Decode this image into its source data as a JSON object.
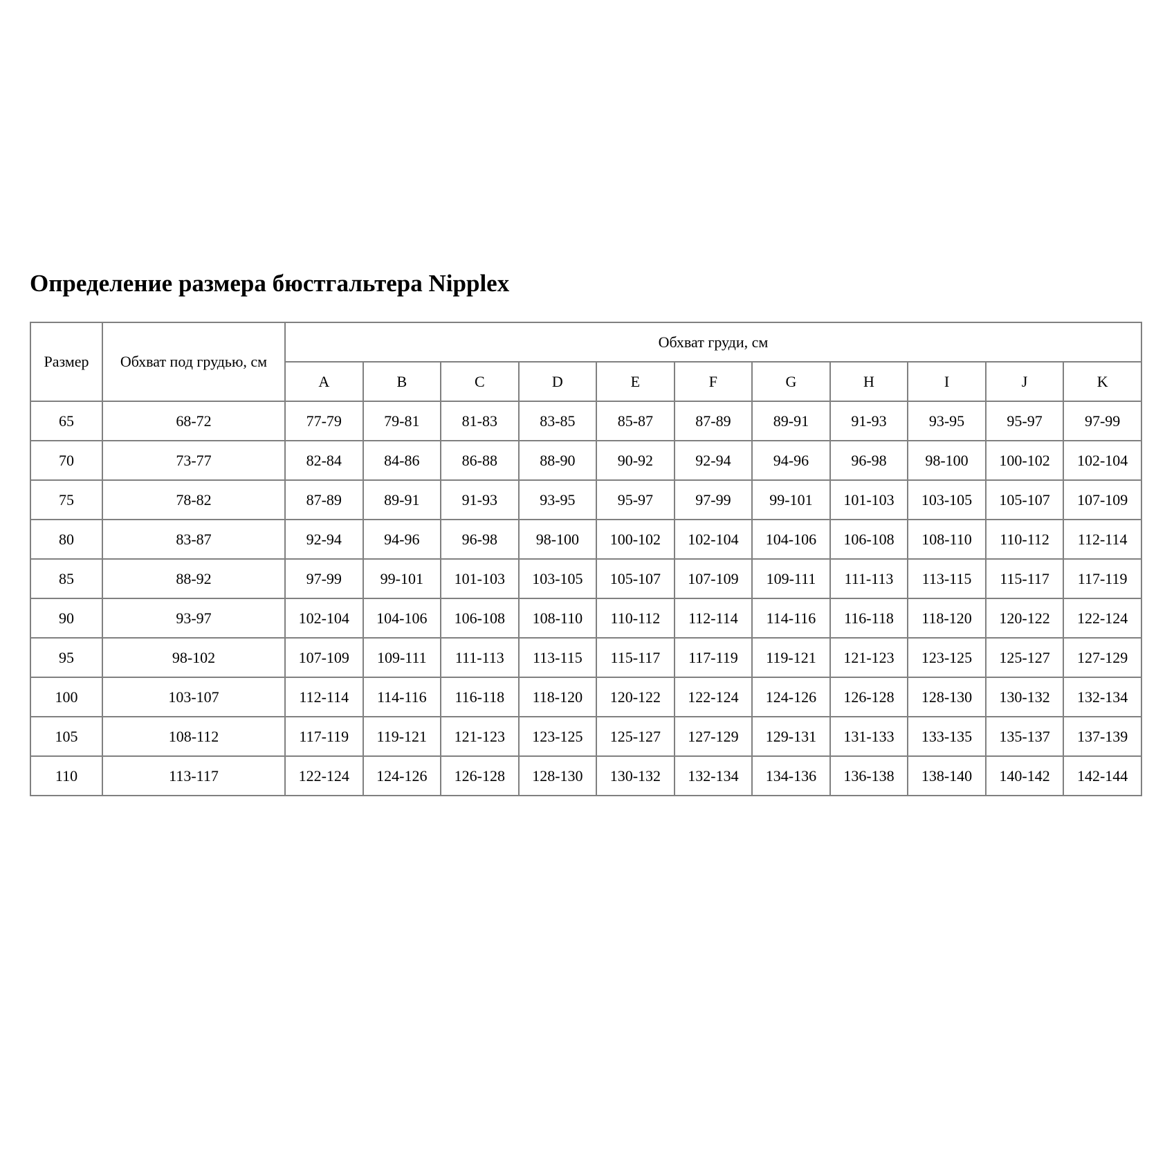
{
  "title": "Определение размера бюстгальтера Nipplex",
  "headers": {
    "size": "Размер",
    "underbust": "Обхват под грудью, см",
    "bust": "Обхват груди, см",
    "cups": [
      "A",
      "B",
      "C",
      "D",
      "E",
      "F",
      "G",
      "H",
      "I",
      "J",
      "K"
    ]
  },
  "rows": [
    {
      "size": "65",
      "underbust": "68-72",
      "cups": [
        "77-79",
        "79-81",
        "81-83",
        "83-85",
        "85-87",
        "87-89",
        "89-91",
        "91-93",
        "93-95",
        "95-97",
        "97-99"
      ]
    },
    {
      "size": "70",
      "underbust": "73-77",
      "cups": [
        "82-84",
        "84-86",
        "86-88",
        "88-90",
        "90-92",
        "92-94",
        "94-96",
        "96-98",
        "98-100",
        "100-102",
        "102-104"
      ]
    },
    {
      "size": "75",
      "underbust": "78-82",
      "cups": [
        "87-89",
        "89-91",
        "91-93",
        "93-95",
        "95-97",
        "97-99",
        "99-101",
        "101-103",
        "103-105",
        "105-107",
        "107-109"
      ]
    },
    {
      "size": "80",
      "underbust": "83-87",
      "cups": [
        "92-94",
        "94-96",
        "96-98",
        "98-100",
        "100-102",
        "102-104",
        "104-106",
        "106-108",
        "108-110",
        "110-112",
        "112-114"
      ]
    },
    {
      "size": "85",
      "underbust": "88-92",
      "cups": [
        "97-99",
        "99-101",
        "101-103",
        "103-105",
        "105-107",
        "107-109",
        "109-111",
        "111-113",
        "113-115",
        "115-117",
        "117-119"
      ]
    },
    {
      "size": "90",
      "underbust": "93-97",
      "cups": [
        "102-104",
        "104-106",
        "106-108",
        "108-110",
        "110-112",
        "112-114",
        "114-116",
        "116-118",
        "118-120",
        "120-122",
        "122-124"
      ]
    },
    {
      "size": "95",
      "underbust": "98-102",
      "cups": [
        "107-109",
        "109-111",
        "111-113",
        "113-115",
        "115-117",
        "117-119",
        "119-121",
        "121-123",
        "123-125",
        "125-127",
        "127-129"
      ]
    },
    {
      "size": "100",
      "underbust": "103-107",
      "cups": [
        "112-114",
        "114-116",
        "116-118",
        "118-120",
        "120-122",
        "122-124",
        "124-126",
        "126-128",
        "128-130",
        "130-132",
        "132-134"
      ]
    },
    {
      "size": "105",
      "underbust": "108-112",
      "cups": [
        "117-119",
        "119-121",
        "121-123",
        "123-125",
        "125-127",
        "127-129",
        "129-131",
        "131-133",
        "133-135",
        "135-137",
        "137-139"
      ]
    },
    {
      "size": "110",
      "underbust": "113-117",
      "cups": [
        "122-124",
        "124-126",
        "126-128",
        "128-130",
        "130-132",
        "132-134",
        "134-136",
        "136-138",
        "138-140",
        "140-142",
        "142-144"
      ]
    }
  ]
}
